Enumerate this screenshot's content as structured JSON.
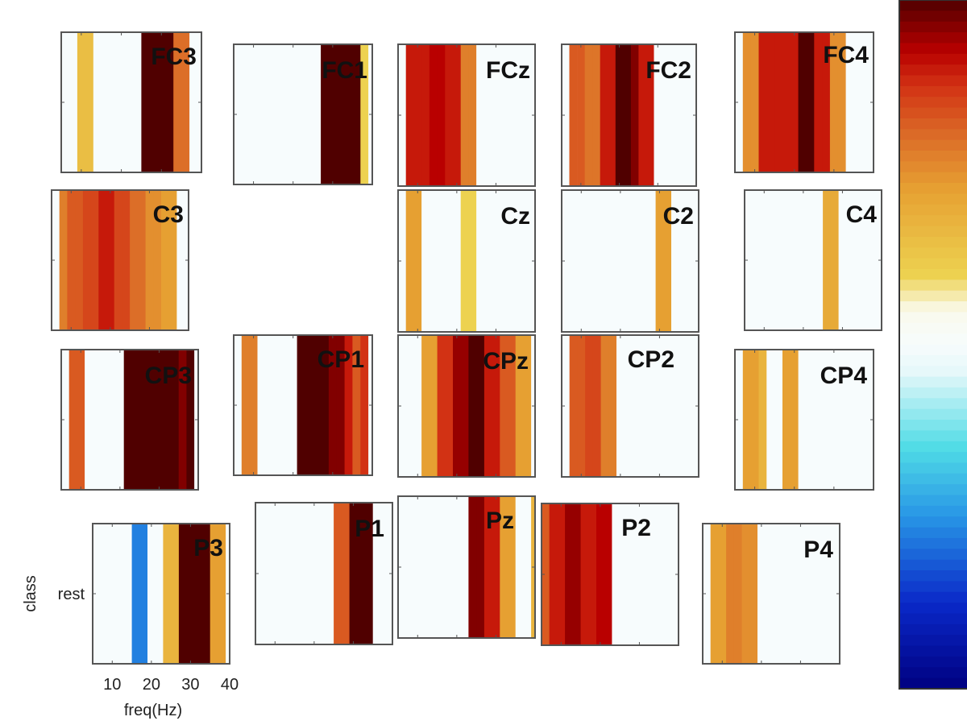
{
  "chart_data": {
    "type": "heatmap",
    "layout": "scalp-topography",
    "x": [
      5,
      7,
      9,
      11,
      13,
      15,
      17,
      19,
      21,
      23,
      25,
      27,
      29,
      31,
      33,
      35,
      37,
      39
    ],
    "xlim": [
      5,
      40
    ],
    "xticks": [
      "10",
      "20",
      "30",
      "40"
    ],
    "xlabel": "freq(Hz)",
    "ylabel": "class",
    "yticks": [
      "rest"
    ],
    "colormap": "jet-like (dark blue → cyan → white → yellow → orange → red → dark red)",
    "colorbar": {
      "position": "right",
      "min": -1,
      "max": 1,
      "labels": []
    },
    "colors": {
      "frame": "#555555",
      "text": "#111111",
      "background": "#ffffff"
    },
    "channels": [
      {
        "label": "FC3",
        "values": [
          0,
          0,
          0.3,
          0.3,
          0,
          0,
          0,
          0,
          0,
          0,
          1,
          1,
          1,
          1,
          0.6,
          0.6,
          0,
          0
        ]
      },
      {
        "label": "FC1",
        "values": [
          0,
          0,
          0,
          0,
          0,
          0,
          0,
          0,
          0,
          0,
          0,
          1,
          1,
          1,
          1,
          1,
          0.2,
          0
        ]
      },
      {
        "label": "FCz",
        "values": [
          0,
          0.8,
          0.8,
          0.8,
          0.85,
          0.85,
          0.8,
          0.8,
          0.55,
          0.55,
          0,
          0,
          0,
          0,
          0,
          0,
          0,
          0
        ]
      },
      {
        "label": "FC2",
        "values": [
          0,
          0.65,
          0.65,
          0.58,
          0.58,
          0.8,
          0.8,
          1,
          1,
          0.93,
          0.8,
          0.8,
          0,
          0,
          0,
          0,
          0,
          0
        ]
      },
      {
        "label": "FC4",
        "values": [
          0,
          0.5,
          0.5,
          0.8,
          0.8,
          0.8,
          0.8,
          0.8,
          1,
          1,
          0.8,
          0.8,
          0.5,
          0.5,
          0,
          0,
          0,
          0
        ]
      },
      {
        "label": "C3",
        "values": [
          0,
          0.55,
          0.65,
          0.65,
          0.7,
          0.7,
          0.8,
          0.8,
          0.7,
          0.7,
          0.6,
          0.6,
          0.5,
          0.5,
          0.45,
          0.45,
          0,
          0
        ]
      },
      {
        "label": "Cz",
        "values": [
          0,
          0.45,
          0.45,
          0,
          0,
          0,
          0,
          0,
          0.2,
          0.2,
          0,
          0,
          0,
          0,
          0,
          0,
          0,
          0
        ]
      },
      {
        "label": "C2",
        "values": [
          0,
          0,
          0,
          0,
          0,
          0,
          0,
          0,
          0,
          0,
          0,
          0,
          0.45,
          0.45,
          0,
          0,
          0,
          0
        ]
      },
      {
        "label": "C4",
        "values": [
          0,
          0,
          0,
          0,
          0,
          0,
          0,
          0,
          0,
          0,
          0.4,
          0.4,
          0,
          0,
          0,
          0,
          0,
          0
        ]
      },
      {
        "label": "CP3",
        "values": [
          0,
          0.65,
          0.65,
          0,
          0,
          0,
          0,
          0,
          1,
          1,
          1,
          1,
          1,
          1,
          1,
          0.93,
          1,
          0
        ]
      },
      {
        "label": "CP1",
        "values": [
          0,
          0.55,
          0.55,
          0,
          0,
          0,
          0,
          0,
          1,
          1,
          1,
          1,
          0.93,
          0.93,
          0.8,
          0.65,
          0.75,
          0
        ]
      },
      {
        "label": "CPz",
        "values": [
          0,
          0,
          0,
          0.45,
          0.45,
          0.75,
          0.75,
          0.9,
          0.9,
          1,
          1,
          0.8,
          0.8,
          0.65,
          0.65,
          0.45,
          0.45,
          0
        ]
      },
      {
        "label": "CP2",
        "values": [
          0,
          0.65,
          0.65,
          0.7,
          0.7,
          0.55,
          0.55,
          0,
          0,
          0,
          0,
          0,
          0,
          0,
          0,
          0,
          0,
          0
        ]
      },
      {
        "label": "CP4",
        "values": [
          0,
          0.45,
          0.45,
          0.35,
          0,
          0,
          0.45,
          0.45,
          0,
          0,
          0,
          0,
          0,
          0,
          0,
          0,
          0,
          0
        ]
      },
      {
        "label": "P3",
        "values": [
          0,
          0,
          0,
          0,
          0,
          -0.55,
          -0.55,
          0,
          0,
          0.35,
          0.35,
          1,
          1,
          1,
          1,
          0.45,
          0.45,
          0
        ]
      },
      {
        "label": "P1",
        "values": [
          0,
          0,
          0,
          0,
          0,
          0,
          0,
          0,
          0,
          0,
          0.65,
          0.65,
          1,
          1,
          1,
          0,
          0,
          0
        ]
      },
      {
        "label": "Pz",
        "values": [
          0,
          0,
          0,
          0,
          0,
          0,
          0,
          0,
          0,
          0.93,
          0.93,
          0.8,
          0.8,
          0.45,
          0.45,
          0,
          0,
          0.35
        ]
      },
      {
        "label": "P2",
        "values": [
          0.65,
          0.8,
          0.8,
          0.9,
          0.9,
          0.8,
          0.8,
          0.85,
          0.85,
          0,
          0,
          0,
          0,
          0,
          0,
          0,
          0,
          0
        ]
      },
      {
        "label": "P4",
        "values": [
          0,
          0.45,
          0.45,
          0.55,
          0.55,
          0.5,
          0.5,
          0,
          0,
          0,
          0,
          0,
          0,
          0,
          0,
          0,
          0,
          0
        ]
      }
    ]
  }
}
